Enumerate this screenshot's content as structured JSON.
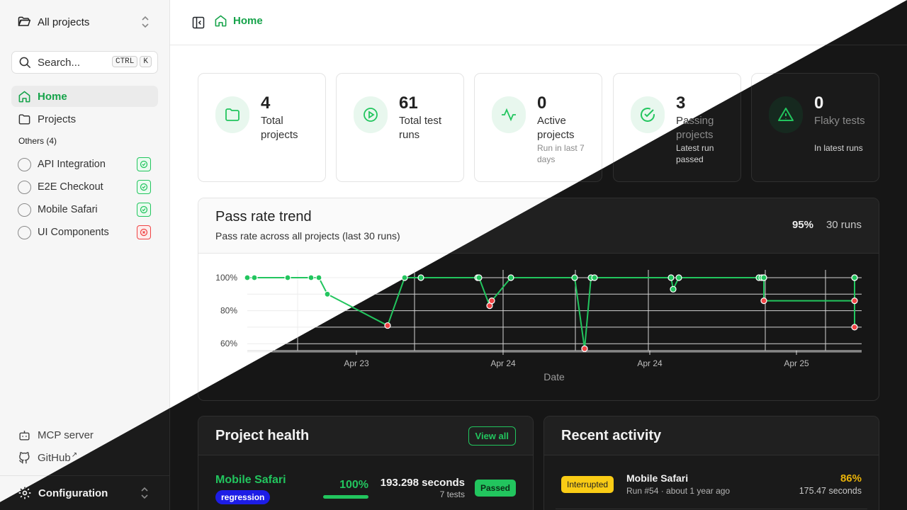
{
  "sidebar": {
    "project_switcher": "All projects",
    "search": {
      "label": "Search...",
      "kbd1": "CTRL",
      "kbd2": "K"
    },
    "nav": [
      {
        "label": "Home"
      },
      {
        "label": "Projects"
      }
    ],
    "section_title": "Others (4)",
    "projects": [
      {
        "label": "API Integration",
        "status": "passed"
      },
      {
        "label": "E2E Checkout",
        "status": "passed"
      },
      {
        "label": "Mobile Safari",
        "status": "passed"
      },
      {
        "label": "UI Components",
        "status": "failed"
      }
    ],
    "bottom": [
      {
        "label": "MCP server"
      },
      {
        "label": "GitHub"
      }
    ],
    "config_label": "Configuration"
  },
  "header": {
    "breadcrumb": "Home"
  },
  "stats": [
    {
      "value": "4",
      "label": "Total projects",
      "sub": ""
    },
    {
      "value": "61",
      "label": "Total test runs",
      "sub": ""
    },
    {
      "value": "0",
      "label": "Active projects",
      "sub": "Run in last 7 days"
    },
    {
      "value": "3",
      "label": "Passing projects",
      "sub": "Latest run passed"
    },
    {
      "value": "0",
      "label": "Flaky tests",
      "sub": "In latest runs"
    }
  ],
  "trend": {
    "title": "Pass rate trend",
    "subtitle": "Pass rate across all projects (last 30 runs)",
    "rate": "95%",
    "runs": "30 runs"
  },
  "chart_data": {
    "type": "line",
    "xlabel": "Date",
    "ylabel": "",
    "ylim": [
      55,
      102
    ],
    "y_ticks": [
      "100%",
      "80%",
      "60%"
    ],
    "x_ticks": [
      "Apr 23",
      "Apr 24",
      "Apr 24",
      "Apr 25"
    ],
    "series": [
      {
        "values": [
          100,
          100,
          100,
          100,
          100,
          90,
          71,
          100,
          100,
          100,
          100,
          83,
          86,
          100,
          100,
          57,
          100,
          100,
          100,
          93,
          100,
          100,
          100,
          100,
          100,
          86,
          86,
          100,
          70,
          100
        ]
      }
    ],
    "passed_color": "#22c55e",
    "failed_color": "#ef4444",
    "grid": true
  },
  "project_health": {
    "title": "Project health",
    "view_all": "View all",
    "rows": [
      {
        "name": "Mobile Safari",
        "tag": "regression",
        "pct": "100%",
        "pct_value": 1.0,
        "seconds": "193.298 seconds",
        "tests": "7 tests",
        "status": "Passed"
      }
    ]
  },
  "recent_activity": {
    "title": "Recent activity",
    "rows": [
      {
        "badge": "Interrupted",
        "name": "Mobile Safari",
        "meta": "Run #54 · about 1 year ago",
        "pct": "86%",
        "seconds": "175.47 seconds"
      }
    ]
  },
  "colors": {
    "accent": "#22c55e",
    "danger": "#ef4444",
    "warning": "#facc15",
    "tag": "#1d1de6"
  }
}
